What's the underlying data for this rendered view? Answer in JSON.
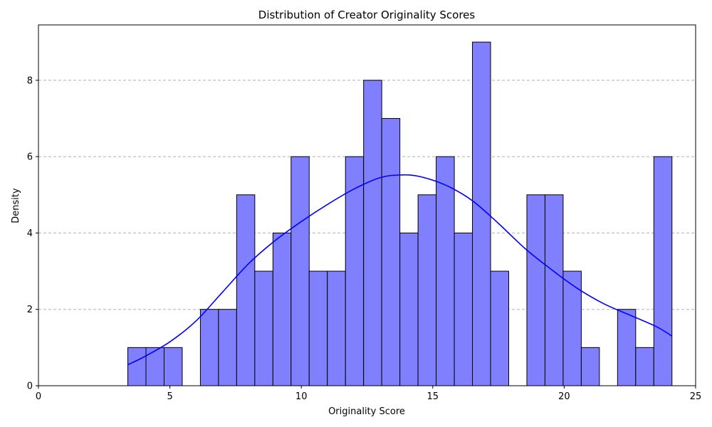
{
  "chart_data": {
    "type": "bar",
    "title": "Distribution of Creator Originality Scores",
    "xlabel": "Originality Score",
    "ylabel": "Density",
    "xlim": [
      0,
      25
    ],
    "ylim": [
      0,
      9.45
    ],
    "x_ticks": [
      "0",
      "5",
      "10",
      "15",
      "20",
      "25"
    ],
    "y_ticks": [
      "0",
      "2",
      "4",
      "6",
      "8"
    ],
    "grid": "y-dashed",
    "bar_color": "#8080ff",
    "bar_edge_color": "#000000",
    "kde_color": "#0000ff",
    "bins": [
      {
        "x0": 3.4,
        "x1": 4.09,
        "value": 1
      },
      {
        "x0": 4.09,
        "x1": 4.78,
        "value": 1
      },
      {
        "x0": 4.78,
        "x1": 5.47,
        "value": 1
      },
      {
        "x0": 5.47,
        "x1": 6.16,
        "value": 0
      },
      {
        "x0": 6.16,
        "x1": 6.85,
        "value": 2
      },
      {
        "x0": 6.85,
        "x1": 7.54,
        "value": 2
      },
      {
        "x0": 7.54,
        "x1": 8.23,
        "value": 5
      },
      {
        "x0": 8.23,
        "x1": 8.92,
        "value": 3
      },
      {
        "x0": 8.92,
        "x1": 9.61,
        "value": 4
      },
      {
        "x0": 9.61,
        "x1": 10.3,
        "value": 6
      },
      {
        "x0": 10.3,
        "x1": 10.99,
        "value": 3
      },
      {
        "x0": 10.99,
        "x1": 11.68,
        "value": 3
      },
      {
        "x0": 11.68,
        "x1": 12.37,
        "value": 6
      },
      {
        "x0": 12.37,
        "x1": 13.06,
        "value": 8
      },
      {
        "x0": 13.06,
        "x1": 13.75,
        "value": 7
      },
      {
        "x0": 13.75,
        "x1": 14.44,
        "value": 4
      },
      {
        "x0": 14.44,
        "x1": 15.13,
        "value": 5
      },
      {
        "x0": 15.13,
        "x1": 15.82,
        "value": 6
      },
      {
        "x0": 15.82,
        "x1": 16.51,
        "value": 4
      },
      {
        "x0": 16.51,
        "x1": 17.2,
        "value": 9
      },
      {
        "x0": 17.2,
        "x1": 17.89,
        "value": 3
      },
      {
        "x0": 17.89,
        "x1": 18.58,
        "value": 0
      },
      {
        "x0": 18.58,
        "x1": 19.27,
        "value": 5
      },
      {
        "x0": 19.27,
        "x1": 19.96,
        "value": 5
      },
      {
        "x0": 19.96,
        "x1": 20.65,
        "value": 3
      },
      {
        "x0": 20.65,
        "x1": 21.34,
        "value": 1
      },
      {
        "x0": 21.34,
        "x1": 22.03,
        "value": 0
      },
      {
        "x0": 22.03,
        "x1": 22.72,
        "value": 2
      },
      {
        "x0": 22.72,
        "x1": 23.41,
        "value": 1
      },
      {
        "x0": 23.41,
        "x1": 24.1,
        "value": 6
      }
    ],
    "kde": [
      [
        3.4,
        0.55
      ],
      [
        4.0,
        0.75
      ],
      [
        5.0,
        1.15
      ],
      [
        6.0,
        1.7
      ],
      [
        7.0,
        2.45
      ],
      [
        8.0,
        3.2
      ],
      [
        9.0,
        3.8
      ],
      [
        10.0,
        4.3
      ],
      [
        11.0,
        4.75
      ],
      [
        12.0,
        5.15
      ],
      [
        13.0,
        5.45
      ],
      [
        13.8,
        5.52
      ],
      [
        14.5,
        5.48
      ],
      [
        15.5,
        5.25
      ],
      [
        16.5,
        4.85
      ],
      [
        17.5,
        4.25
      ],
      [
        18.5,
        3.6
      ],
      [
        19.5,
        3.05
      ],
      [
        20.5,
        2.55
      ],
      [
        21.5,
        2.15
      ],
      [
        22.5,
        1.85
      ],
      [
        23.5,
        1.55
      ],
      [
        24.1,
        1.3
      ]
    ]
  }
}
